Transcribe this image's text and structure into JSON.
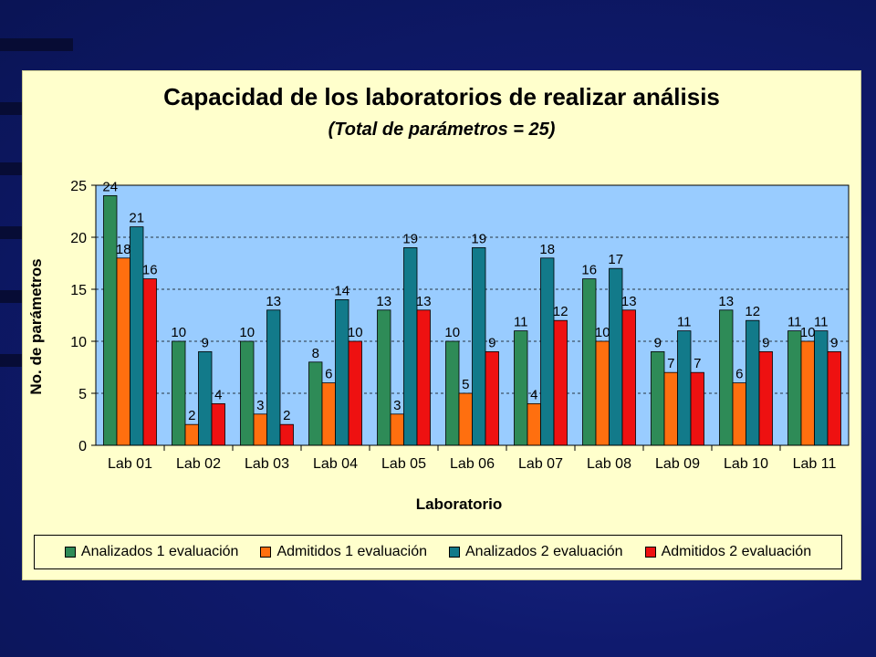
{
  "chart_data": {
    "type": "bar",
    "title": "Capacidad de los laboratorios de realizar análisis",
    "subtitle": "(Total de parámetros = 25)",
    "xlabel": "Laboratorio",
    "ylabel": "No. de parámetros",
    "ylim": [
      0,
      25
    ],
    "yticks": [
      0,
      5,
      10,
      15,
      20,
      25
    ],
    "grid": true,
    "legend_position": "bottom",
    "categories": [
      "Lab 01",
      "Lab 02",
      "Lab 03",
      "Lab 04",
      "Lab 05",
      "Lab 06",
      "Lab 07",
      "Lab 08",
      "Lab 09",
      "Lab 10",
      "Lab 11"
    ],
    "series": [
      {
        "name": "Analizados 1 evaluación",
        "color": "#2e8b57",
        "values": [
          24,
          10,
          10,
          8,
          13,
          10,
          11,
          16,
          9,
          13,
          11
        ]
      },
      {
        "name": "Admitidos 1 evaluación",
        "color": "#ff6f0f",
        "values": [
          18,
          2,
          3,
          6,
          3,
          5,
          4,
          10,
          7,
          6,
          10
        ]
      },
      {
        "name": "Analizados 2 evaluación",
        "color": "#127a8a",
        "values": [
          21,
          9,
          13,
          14,
          19,
          19,
          18,
          17,
          11,
          12,
          11
        ]
      },
      {
        "name": "Admitidos 2 evaluación",
        "color": "#ee1111",
        "values": [
          16,
          4,
          2,
          10,
          13,
          9,
          12,
          13,
          7,
          9,
          9
        ]
      }
    ],
    "plot_background": "#99ccff"
  }
}
